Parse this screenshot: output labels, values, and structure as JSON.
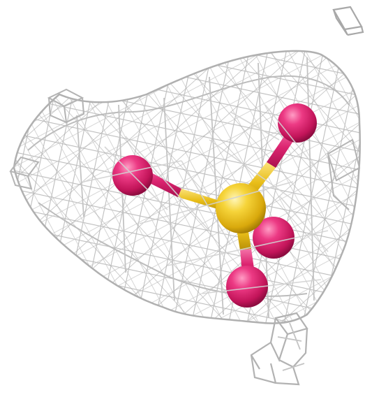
{
  "scene": {
    "subject": "sulfate-ion-ball-and-stick-in-electron-density-mesh",
    "molecule": {
      "central_atom": {
        "element": "S",
        "color": "#f2c81e"
      },
      "outer_atoms": [
        {
          "element": "O",
          "color": "#e0226e"
        },
        {
          "element": "O",
          "color": "#e0226e"
        },
        {
          "element": "O",
          "color": "#e0226e"
        },
        {
          "element": "O",
          "color": "#e0226e"
        }
      ]
    },
    "mesh": {
      "color": "#b9b9b9",
      "style": "wireframe"
    },
    "background_color": "#ffffff"
  }
}
